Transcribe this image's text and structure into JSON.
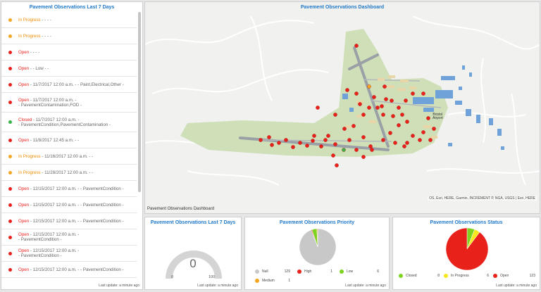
{
  "list_panel": {
    "title": "Pavement Observations Last 7 Days",
    "last_update": "Last update: a minute ago",
    "items": [
      {
        "status": "In Progress",
        "kind": "prog",
        "dot": "#f5a623",
        "line1": " - - - -",
        "line2": ""
      },
      {
        "status": "In Progress",
        "kind": "prog",
        "dot": "#f5a623",
        "line1": " - - - -",
        "line2": ""
      },
      {
        "status": "Open",
        "kind": "open",
        "dot": "#e8211b",
        "line1": " - - - -",
        "line2": ""
      },
      {
        "status": "Open",
        "kind": "open",
        "dot": "#e8211b",
        "line1": " - - Low - -",
        "line2": ""
      },
      {
        "status": "Open",
        "kind": "open",
        "dot": "#e8211b",
        "line1": " - 11/7/2017 12:00 a.m. - - Paint,Electrical,Other -",
        "line2": ""
      },
      {
        "status": "Open",
        "kind": "open",
        "dot": "#e8211b",
        "line1": " - 11/7/2017 12:00 a.m. -",
        "line2": "- PavementContamination,FOD -"
      },
      {
        "status": "Closed",
        "kind": "closed",
        "dot": "#3ab54a",
        "line1": " - 11/7/2017 12:00 a.m. -",
        "line2": "- PavementCondition,PavementContamination -"
      },
      {
        "status": "Open",
        "kind": "open",
        "dot": "#e8211b",
        "line1": " - 11/8/2017 12:45 a.m. - -",
        "line2": ""
      },
      {
        "status": "In Progress",
        "kind": "prog",
        "dot": "#f5a623",
        "line1": " - 11/16/2017 12:00 a.m. - -",
        "line2": ""
      },
      {
        "status": "In Progress",
        "kind": "prog",
        "dot": "#f5a623",
        "line1": " - 11/28/2017 12:00 a.m. - -",
        "line2": ""
      },
      {
        "status": "Open",
        "kind": "open",
        "dot": "#e8211b",
        "line1": " - 12/15/2017 12:00 a.m. - - PavementCondition -",
        "line2": ""
      },
      {
        "status": "Open",
        "kind": "open",
        "dot": "#e8211b",
        "line1": " - 12/15/2017 12:00 a.m. - - PavementCondition -",
        "line2": ""
      },
      {
        "status": "Open",
        "kind": "open",
        "dot": "#e8211b",
        "line1": " - 12/15/2017 12:00 a.m. - - PavementCondition -",
        "line2": ""
      },
      {
        "status": "Open",
        "kind": "open",
        "dot": "#e8211b",
        "line1": " - 12/15/2017 12:00 a.m. -",
        "line2": "- PavementCondition -"
      },
      {
        "status": "Open",
        "kind": "open",
        "dot": "#e8211b",
        "line1": " - 12/15/2017 12:00 a.m. -",
        "line2": "- PavementCondition -"
      },
      {
        "status": "Open",
        "kind": "open",
        "dot": "#e8211b",
        "line1": " - 12/15/2017 12:00 a.m. - - PavementCondition -",
        "line2": ""
      },
      {
        "status": "Open",
        "kind": "open",
        "dot": "#e8211b",
        "line1": " - 12/15/2017 12:00 a.m. - - Paint -",
        "line2": ""
      }
    ]
  },
  "map_panel": {
    "title": "Pavement Observations Dashboard",
    "footer": "Pavement Observations Dashboard",
    "attribution": "OS, Esri, HERE, Garmin, INCREMENT P, NGA, USGS | Esri, HERE",
    "airport_label_1": "Bristol",
    "airport_label_2": "Airport"
  },
  "gauge_panel": {
    "title": "Pavement Observations Last 7 Days",
    "value": "0",
    "min": "0",
    "max": "100",
    "last_update": "Last update: a minute ago"
  },
  "priority_panel": {
    "title": "Pavement Observations Priority",
    "last_update": "Last update: a minute ago",
    "legend": [
      {
        "label": "Null",
        "count": "129",
        "color": "#c8c8c8"
      },
      {
        "label": "High",
        "count": "1",
        "color": "#e8211b"
      },
      {
        "label": "Low",
        "count": "6",
        "color": "#7ed321"
      },
      {
        "label": "Medium",
        "count": "1",
        "color": "#f5a623"
      }
    ]
  },
  "status_panel": {
    "title": "Pavement Observations Status",
    "last_update": "Last update: a minute ago",
    "legend": [
      {
        "label": "Closed",
        "count": "8",
        "color": "#7ed321"
      },
      {
        "label": "In Progress",
        "count": "6",
        "color": "#f8e71c"
      },
      {
        "label": "Open",
        "count": "123",
        "color": "#e8211b"
      }
    ]
  },
  "chart_data": [
    {
      "type": "pie",
      "title": "Pavement Observations Priority",
      "categories": [
        "Null",
        "High",
        "Low",
        "Medium"
      ],
      "values": [
        129,
        1,
        6,
        1
      ],
      "colors": [
        "#c8c8c8",
        "#e8211b",
        "#7ed321",
        "#f5a623"
      ]
    },
    {
      "type": "pie",
      "title": "Pavement Observations Status",
      "categories": [
        "Closed",
        "In Progress",
        "Open"
      ],
      "values": [
        8,
        6,
        123
      ],
      "colors": [
        "#7ed321",
        "#f8e71c",
        "#e8211b"
      ]
    },
    {
      "type": "gauge",
      "title": "Pavement Observations Last 7 Days",
      "value": 0,
      "range": [
        0,
        100
      ]
    }
  ]
}
